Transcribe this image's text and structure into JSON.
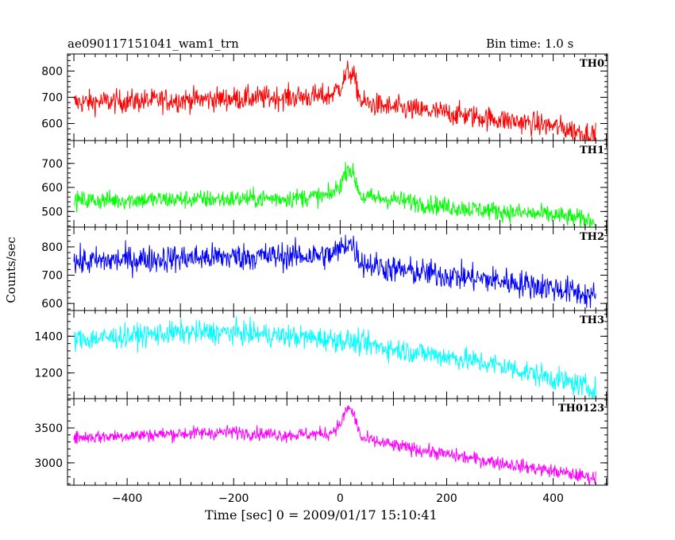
{
  "chart_data": {
    "type": "line",
    "title": "ae090117151041_wam1_trn",
    "bin_time": "Bin time: 1.0 s",
    "xlabel": "Time [sec] 0 = 2009/01/17 15:10:41",
    "ylabel": "Counts/sec",
    "xlim": [
      -512,
      502
    ],
    "xticks": [
      -400,
      -200,
      0,
      200,
      400
    ],
    "grid": false,
    "panels": [
      {
        "label": "TH0",
        "color": "#ff0000",
        "ylim": [
          535,
          865
        ],
        "yticks": [
          600,
          700,
          800
        ],
        "noise": 32,
        "x": [
          -500,
          -400,
          -300,
          -200,
          -100,
          -20,
          0,
          15,
          25,
          40,
          100,
          200,
          300,
          400,
          480
        ],
        "y": [
          680,
          685,
          690,
          695,
          700,
          705,
          740,
          800,
          780,
          680,
          660,
          640,
          615,
          590,
          555
        ]
      },
      {
        "label": "TH1",
        "color": "#00ff00",
        "ylim": [
          435,
          795
        ],
        "yticks": [
          500,
          600,
          700
        ],
        "noise": 28,
        "x": [
          -500,
          -400,
          -300,
          -200,
          -100,
          -20,
          0,
          15,
          25,
          40,
          100,
          200,
          300,
          400,
          480
        ],
        "y": [
          545,
          548,
          550,
          552,
          555,
          565,
          610,
          690,
          650,
          560,
          550,
          520,
          500,
          485,
          460
        ]
      },
      {
        "label": "TH2",
        "color": "#0000ff",
        "ylim": [
          575,
          870
        ],
        "yticks": [
          600,
          700,
          800
        ],
        "noise": 35,
        "x": [
          -500,
          -400,
          -300,
          -200,
          -100,
          -20,
          0,
          15,
          25,
          40,
          100,
          200,
          300,
          400,
          480
        ],
        "y": [
          745,
          755,
          760,
          765,
          768,
          770,
          790,
          820,
          800,
          745,
          720,
          700,
          680,
          655,
          625
        ]
      },
      {
        "label": "TH3",
        "color": "#00ffff",
        "ylim": [
          1060,
          1540
        ],
        "yticks": [
          1200,
          1400
        ],
        "noise": 45,
        "x": [
          -500,
          -400,
          -300,
          -200,
          -100,
          0,
          100,
          200,
          300,
          400,
          480
        ],
        "y": [
          1380,
          1400,
          1420,
          1420,
          1400,
          1380,
          1330,
          1290,
          1240,
          1170,
          1110
        ]
      },
      {
        "label": "TH0123",
        "color": "#ff00ff",
        "ylim": [
          2680,
          3920
        ],
        "yticks": [
          3000,
          3500
        ],
        "noise": 70,
        "x": [
          -500,
          -400,
          -300,
          -200,
          -100,
          -20,
          0,
          15,
          25,
          40,
          100,
          200,
          300,
          400,
          480
        ],
        "y": [
          3360,
          3390,
          3420,
          3440,
          3400,
          3420,
          3550,
          3800,
          3700,
          3350,
          3250,
          3120,
          3000,
          2880,
          2780
        ]
      }
    ]
  }
}
